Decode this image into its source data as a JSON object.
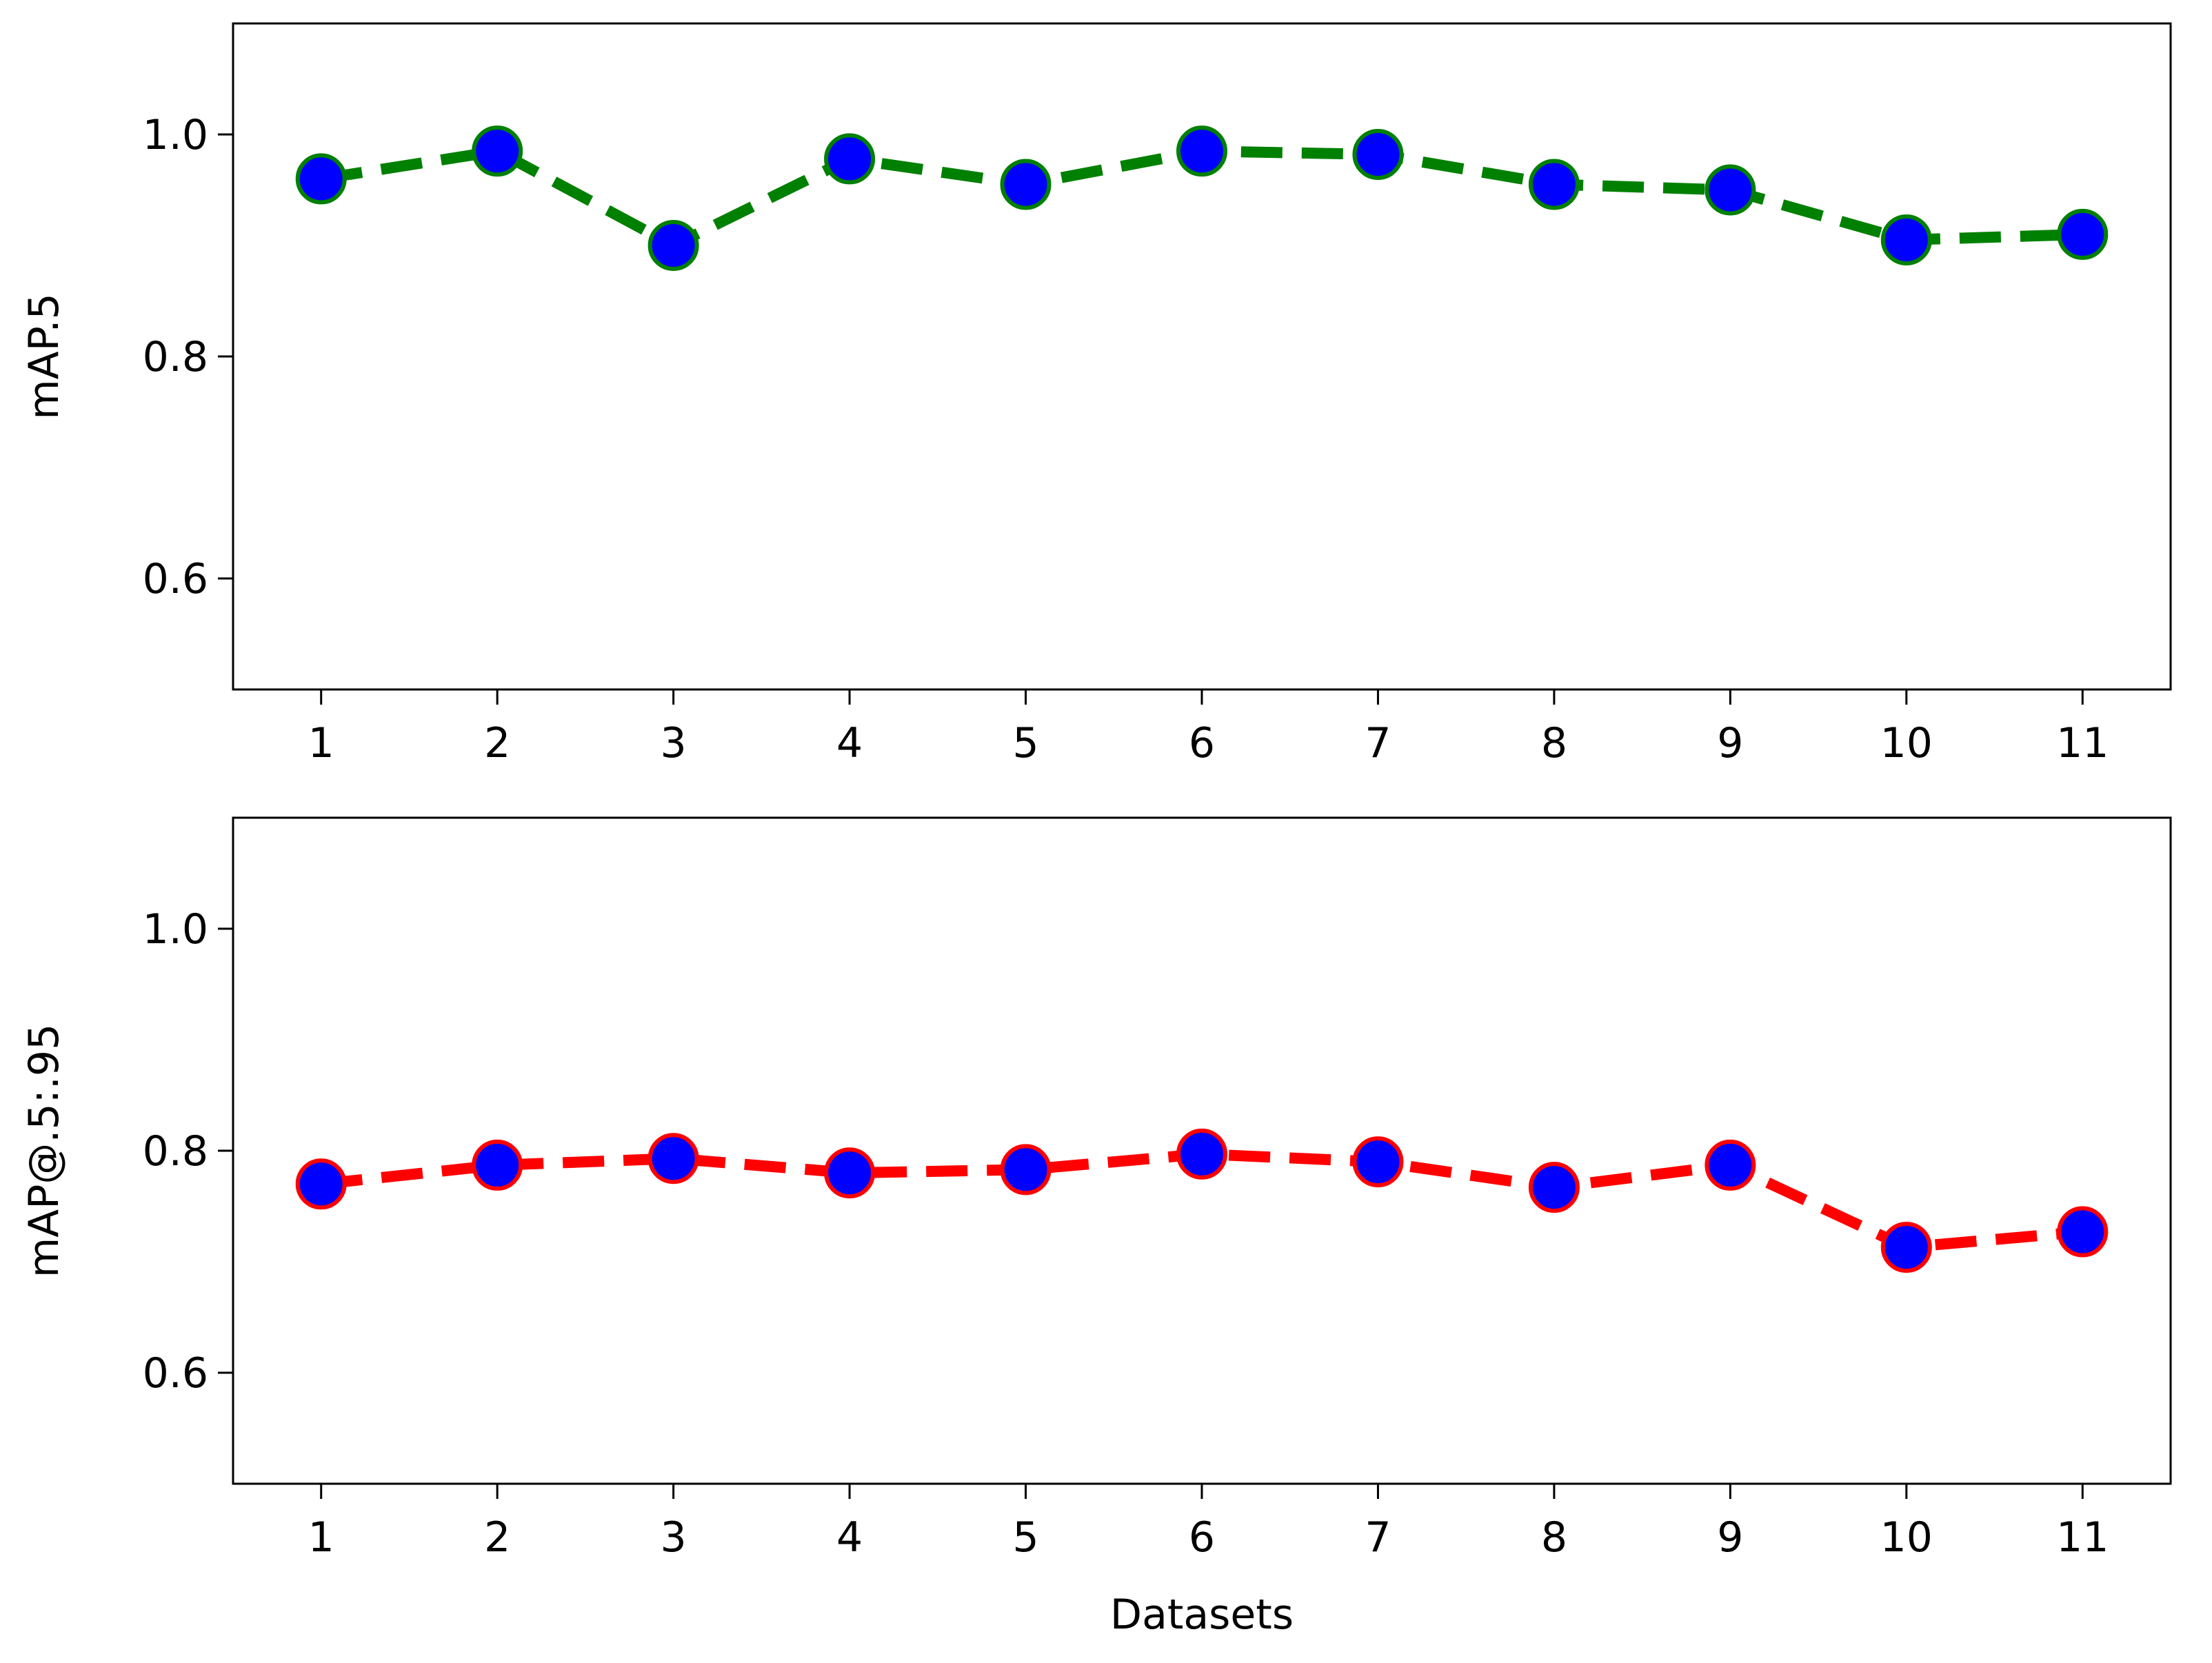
{
  "chart_data": [
    {
      "type": "line",
      "title": "",
      "xlabel": "",
      "ylabel": "mAP.5",
      "x": [
        1,
        2,
        3,
        4,
        5,
        6,
        7,
        8,
        9,
        10,
        11
      ],
      "xticks": [
        "1",
        "2",
        "3",
        "4",
        "5",
        "6",
        "7",
        "8",
        "9",
        "10",
        "11"
      ],
      "yticks": [
        "0.6",
        "0.8",
        "1.0"
      ],
      "ylim": [
        0.5,
        1.1
      ],
      "grid": false,
      "series": [
        {
          "values": [
            0.96,
            0.985,
            0.9,
            0.978,
            0.955,
            0.985,
            0.982,
            0.955,
            0.95,
            0.905,
            0.91
          ],
          "line_color": "#008000",
          "line_style": "dashed",
          "marker": "circle",
          "marker_fill": "#0000ff",
          "marker_edge": "#008000"
        }
      ]
    },
    {
      "type": "line",
      "title": "",
      "xlabel": "Datasets",
      "ylabel": "mAP@.5:.95",
      "x": [
        1,
        2,
        3,
        4,
        5,
        6,
        7,
        8,
        9,
        10,
        11
      ],
      "xticks": [
        "1",
        "2",
        "3",
        "4",
        "5",
        "6",
        "7",
        "8",
        "9",
        "10",
        "11"
      ],
      "yticks": [
        "0.6",
        "0.8",
        "1.0"
      ],
      "ylim": [
        0.5,
        1.1
      ],
      "grid": false,
      "series": [
        {
          "values": [
            0.77,
            0.787,
            0.793,
            0.78,
            0.783,
            0.797,
            0.79,
            0.767,
            0.787,
            0.713,
            0.727
          ],
          "line_color": "#ff0000",
          "line_style": "dashed",
          "marker": "circle",
          "marker_fill": "#0000ff",
          "marker_edge": "#ff0000"
        }
      ]
    }
  ]
}
